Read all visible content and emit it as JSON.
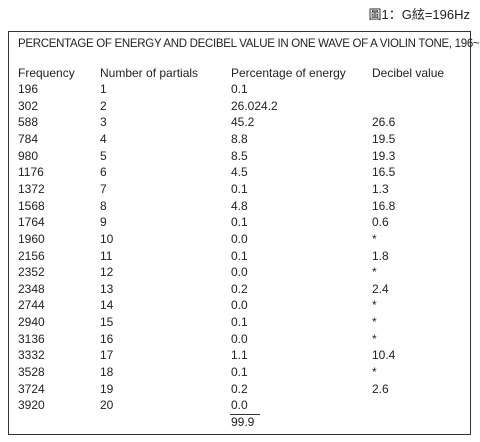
{
  "header": {
    "figure_label": "圖1：G絃=196Hz"
  },
  "table": {
    "title": "PERCENTAGE OF ENERGY AND DECIBEL VALUE IN ONE WAVE OF A VIOLIN TONE, 196~  ,",
    "columns": [
      "Frequency",
      "Number of partials",
      "Percentage of energy",
      "Decibel value"
    ],
    "rows": [
      [
        "196",
        "1",
        "0.1",
        null
      ],
      [
        "302",
        "2",
        "26.024.2",
        null
      ],
      [
        "588",
        "3",
        "45.2",
        "26.6"
      ],
      [
        "784",
        "4",
        "8.8",
        "19.5"
      ],
      [
        "980",
        "5",
        "8.5",
        "19.3"
      ],
      [
        "1176",
        "6",
        "4.5",
        "16.5"
      ],
      [
        "1372",
        "7",
        "0.1",
        "1.3"
      ],
      [
        "1568",
        "8",
        "4.8",
        "16.8"
      ],
      [
        "1764",
        "9",
        "0.1",
        "0.6"
      ],
      [
        "1960",
        "10",
        "0.0",
        "*"
      ],
      [
        "2156",
        "11",
        "0.1",
        "1.8"
      ],
      [
        "2352",
        "12",
        "0.0",
        "*"
      ],
      [
        "2348",
        "13",
        "0.2",
        "2.4"
      ],
      [
        "2744",
        "14",
        "0.0",
        "*"
      ],
      [
        "2940",
        "15",
        "0.1",
        "*"
      ],
      [
        "3136",
        "16",
        "0.0",
        "*"
      ],
      [
        "3332",
        "17",
        "1.1",
        "10.4"
      ],
      [
        "3528",
        "18",
        "0.1",
        "*"
      ],
      [
        "3724",
        "19",
        "0.2",
        "2.6"
      ],
      [
        "3920",
        "20",
        "0.0",
        null
      ]
    ],
    "total": "99.9"
  }
}
